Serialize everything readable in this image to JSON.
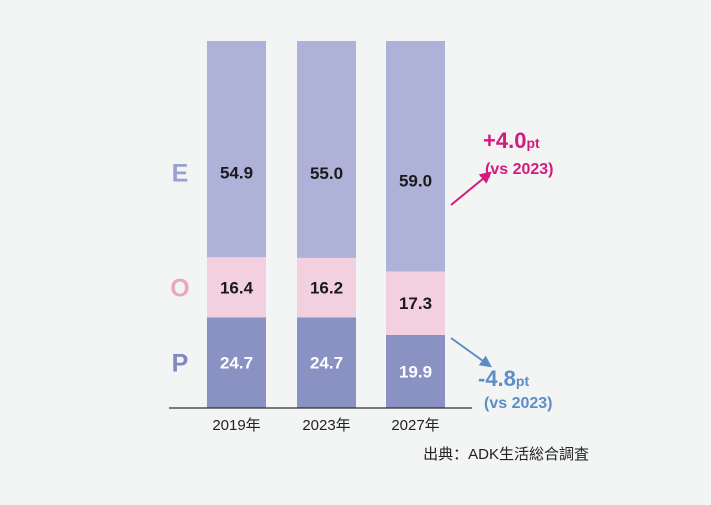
{
  "chart_data": {
    "type": "bar",
    "stacked": true,
    "categories": [
      "2019年",
      "2023年",
      "2027年"
    ],
    "series": [
      {
        "name": "P",
        "values": [
          24.7,
          24.7,
          19.9
        ],
        "color": "#8a92c4",
        "label_color": "#ffffff"
      },
      {
        "name": "O",
        "values": [
          16.4,
          16.2,
          17.3
        ],
        "color": "#f3d0df",
        "label_color": "#1a1a1a"
      },
      {
        "name": "E",
        "values": [
          54.9,
          55.0,
          59.0
        ],
        "color": "#aeb2d9",
        "label_color": "#1a1a1a"
      }
    ],
    "legend_colors": {
      "E": "#9aa0cf",
      "O": "#e8a8c4",
      "P": "#7f88c0"
    },
    "ylim": [
      0,
      100
    ],
    "grid": false,
    "annotations": [
      {
        "series": "E",
        "main": "+4.0",
        "unit": "pt",
        "sub": "(vs 2023)",
        "color": "#d6197e",
        "direction": "up"
      },
      {
        "series": "P",
        "main": "-4.8",
        "unit": "pt",
        "sub": "(vs 2023)",
        "color": "#5b8ec7",
        "direction": "down"
      }
    ],
    "source": "出典：ADK生活総合調査"
  }
}
